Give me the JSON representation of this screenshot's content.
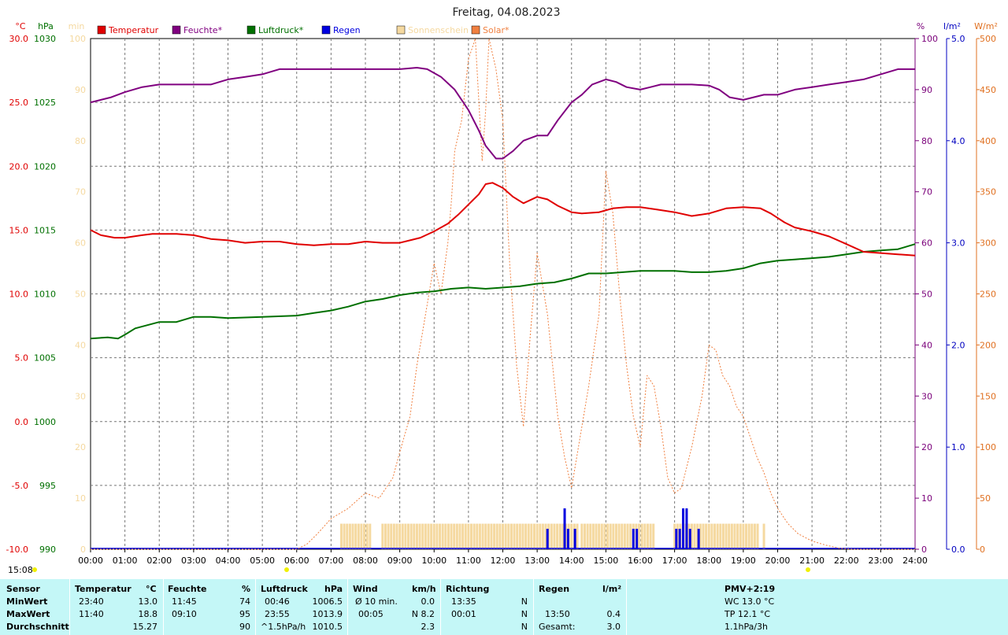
{
  "chart_data": {
    "type": "line",
    "title": "Freitag, 04.08.2023",
    "x_ticks": [
      "00:00",
      "01:00",
      "02:00",
      "03:00",
      "04:00",
      "05:00",
      "06:00",
      "07:00",
      "08:00",
      "09:00",
      "10:00",
      "11:00",
      "12:00",
      "13:00",
      "14:00",
      "15:00",
      "16:00",
      "17:00",
      "18:00",
      "19:00",
      "20:00",
      "21:00",
      "22:00",
      "23:00",
      "24:00"
    ],
    "xlim": [
      0,
      24
    ],
    "start_time_label": "15:08",
    "axes": {
      "temperature": {
        "unit": "°C",
        "ticks": [
          "30.0",
          "25.0",
          "20.0",
          "15.0",
          "10.0",
          "5.0",
          "0.0",
          "-5.0",
          "-10.0"
        ],
        "range": [
          -10,
          30
        ],
        "color": "#e00000"
      },
      "pressure": {
        "unit": "hPa",
        "ticks": [
          "1030",
          "1025",
          "1020",
          "1015",
          "1010",
          "1005",
          "1000",
          "995",
          "990"
        ],
        "range": [
          990,
          1030
        ],
        "color": "#007000"
      },
      "sunshine": {
        "unit": "min",
        "ticks": [
          "100",
          "90",
          "80",
          "70",
          "60",
          "50",
          "40",
          "30",
          "20",
          "10",
          "0"
        ],
        "range": [
          0,
          100
        ],
        "color": "#f5d9a0"
      },
      "humidity": {
        "unit": "%",
        "ticks": [
          "100",
          "90",
          "80",
          "70",
          "60",
          "50",
          "40",
          "30",
          "20",
          "10",
          "0"
        ],
        "range": [
          0,
          100
        ],
        "color": "#7a007a"
      },
      "rain": {
        "unit": "l/m²",
        "ticks": [
          "5.0",
          "4.0",
          "3.0",
          "2.0",
          "1.0",
          "0.0"
        ],
        "range": [
          0,
          5
        ],
        "color": "#0000c0"
      },
      "solar": {
        "unit": "W/m²",
        "ticks": [
          "500",
          "450",
          "400",
          "350",
          "300",
          "250",
          "200",
          "150",
          "100",
          "50",
          "0"
        ],
        "range": [
          0,
          500
        ],
        "color": "#e07020"
      }
    },
    "legend": [
      {
        "name": "Temperatur",
        "color": "#e00000"
      },
      {
        "name": "Feuchte*",
        "color": "#800080"
      },
      {
        "name": "Luftdruck*",
        "color": "#007000"
      },
      {
        "name": "Regen",
        "color": "#0000e0"
      },
      {
        "name": "Sonnenschein",
        "color": "#f5d9a0"
      },
      {
        "name": "Solar*",
        "color": "#f08040"
      }
    ],
    "series": {
      "temperature": {
        "x": [
          0,
          0.3,
          0.7,
          1.0,
          1.5,
          1.8,
          2.5,
          3.0,
          3.5,
          4.0,
          4.5,
          5.0,
          5.5,
          6.0,
          6.5,
          7.0,
          7.5,
          8.0,
          8.5,
          9.0,
          9.3,
          9.6,
          10.0,
          10.4,
          10.7,
          11.0,
          11.3,
          11.5,
          11.7,
          12.0,
          12.3,
          12.6,
          13.0,
          13.3,
          13.6,
          14.0,
          14.3,
          14.8,
          15.2,
          15.6,
          16.0,
          16.5,
          17.0,
          17.5,
          18.0,
          18.5,
          19.0,
          19.5,
          19.8,
          20.2,
          20.5,
          21.0,
          21.5,
          22.0,
          22.5,
          23.0,
          23.5,
          24.0
        ],
        "y": [
          15.0,
          14.6,
          14.4,
          14.4,
          14.6,
          14.7,
          14.7,
          14.6,
          14.3,
          14.2,
          14.0,
          14.1,
          14.1,
          13.9,
          13.8,
          13.9,
          13.9,
          14.1,
          14.0,
          14.0,
          14.2,
          14.4,
          14.9,
          15.5,
          16.2,
          17.0,
          17.8,
          18.6,
          18.7,
          18.3,
          17.6,
          17.1,
          17.6,
          17.4,
          16.9,
          16.4,
          16.3,
          16.4,
          16.7,
          16.8,
          16.8,
          16.6,
          16.4,
          16.1,
          16.3,
          16.7,
          16.8,
          16.7,
          16.3,
          15.6,
          15.2,
          14.9,
          14.5,
          13.9,
          13.3,
          13.2,
          13.1,
          13.0
        ]
      },
      "humidity": {
        "x": [
          0,
          0.3,
          0.6,
          1.0,
          1.5,
          2.0,
          3.0,
          3.5,
          4.0,
          4.5,
          5.0,
          5.5,
          6.0,
          7.0,
          8.0,
          9.0,
          9.5,
          9.8,
          10.2,
          10.6,
          11.0,
          11.3,
          11.5,
          11.8,
          12.0,
          12.3,
          12.6,
          13.0,
          13.3,
          13.6,
          14.0,
          14.3,
          14.6,
          15.0,
          15.3,
          15.6,
          16.0,
          16.3,
          16.6,
          17.0,
          17.5,
          18.0,
          18.3,
          18.6,
          19.0,
          19.3,
          19.6,
          20.0,
          20.5,
          21.0,
          21.5,
          22.0,
          22.5,
          23.0,
          23.5,
          24.0
        ],
        "y": [
          87.5,
          88.0,
          88.5,
          89.5,
          90.5,
          91.0,
          91.0,
          91.0,
          92.0,
          92.5,
          93.0,
          94.0,
          94.0,
          94.0,
          94.0,
          94.0,
          94.3,
          94.0,
          92.5,
          90.0,
          86.0,
          82.0,
          79.0,
          76.5,
          76.5,
          78.0,
          80.0,
          81.0,
          81.0,
          84.0,
          87.5,
          89.0,
          91.0,
          92.0,
          91.5,
          90.5,
          90.0,
          90.5,
          91.0,
          91.0,
          91.0,
          90.8,
          90.0,
          88.5,
          88.0,
          88.5,
          89.0,
          89.0,
          90.0,
          90.5,
          91.0,
          91.5,
          92.0,
          93.0,
          94.0,
          94.0
        ]
      },
      "pressure": {
        "x": [
          0,
          0.5,
          0.8,
          1.0,
          1.3,
          2.0,
          2.5,
          3.0,
          3.5,
          4.0,
          5.0,
          6.0,
          6.5,
          7.0,
          7.5,
          8.0,
          8.5,
          9.0,
          9.5,
          10.0,
          10.5,
          11.0,
          11.5,
          12.0,
          12.5,
          13.0,
          13.5,
          14.0,
          14.5,
          15.0,
          15.5,
          16.0,
          16.5,
          17.0,
          17.5,
          18.0,
          18.5,
          19.0,
          19.5,
          20.0,
          20.5,
          21.0,
          21.5,
          22.0,
          22.5,
          23.0,
          23.5,
          24.0
        ],
        "y": [
          1006.5,
          1006.6,
          1006.5,
          1006.8,
          1007.3,
          1007.8,
          1007.8,
          1008.2,
          1008.2,
          1008.1,
          1008.2,
          1008.3,
          1008.5,
          1008.7,
          1009.0,
          1009.4,
          1009.6,
          1009.9,
          1010.1,
          1010.2,
          1010.4,
          1010.5,
          1010.4,
          1010.5,
          1010.6,
          1010.8,
          1010.9,
          1011.2,
          1011.6,
          1011.6,
          1011.7,
          1011.8,
          1011.8,
          1011.8,
          1011.7,
          1011.7,
          1011.8,
          1012.0,
          1012.4,
          1012.6,
          1012.7,
          1012.8,
          1012.9,
          1013.1,
          1013.3,
          1013.4,
          1013.5,
          1013.9
        ]
      },
      "solar": {
        "x": [
          0,
          6.0,
          6.3,
          6.6,
          7.0,
          7.5,
          8.0,
          8.4,
          8.8,
          9.0,
          9.3,
          9.5,
          9.7,
          10.0,
          10.2,
          10.4,
          10.5,
          10.6,
          10.8,
          11.0,
          11.2,
          11.4,
          11.5,
          11.6,
          11.8,
          12.0,
          12.2,
          12.4,
          12.6,
          12.8,
          13.0,
          13.3,
          13.6,
          13.8,
          14.0,
          14.2,
          14.5,
          14.8,
          15.0,
          15.2,
          15.4,
          15.6,
          15.8,
          16.0,
          16.2,
          16.4,
          16.6,
          16.8,
          17.0,
          17.2,
          17.5,
          17.8,
          18.0,
          18.2,
          18.4,
          18.6,
          18.8,
          19.0,
          19.2,
          19.4,
          19.6,
          19.8,
          20.0,
          20.3,
          20.6,
          21.0,
          21.4,
          21.8,
          22.2,
          24.0
        ],
        "y": [
          0,
          0,
          5,
          15,
          30,
          40,
          55,
          50,
          70,
          95,
          130,
          180,
          220,
          280,
          250,
          300,
          340,
          390,
          420,
          480,
          500,
          380,
          430,
          500,
          470,
          420,
          280,
          180,
          120,
          210,
          290,
          230,
          130,
          90,
          60,
          100,
          160,
          230,
          370,
          330,
          250,
          180,
          130,
          100,
          170,
          160,
          120,
          70,
          55,
          60,
          100,
          150,
          200,
          195,
          170,
          160,
          140,
          130,
          110,
          90,
          75,
          55,
          40,
          25,
          15,
          8,
          4,
          1,
          0,
          0
        ]
      },
      "sunshine": {
        "intervals": [
          [
            7.3,
            8.15
          ],
          [
            8.5,
            14.2
          ],
          [
            14.3,
            16.4
          ],
          [
            17.0,
            19.45
          ],
          [
            19.6,
            19.65
          ]
        ],
        "value": 5
      },
      "rain": {
        "bars": [
          {
            "x": 13.3,
            "value": 0.2
          },
          {
            "x": 13.8,
            "value": 0.4
          },
          {
            "x": 13.9,
            "value": 0.2
          },
          {
            "x": 14.1,
            "value": 0.2
          },
          {
            "x": 15.8,
            "value": 0.2
          },
          {
            "x": 15.9,
            "value": 0.2
          },
          {
            "x": 17.05,
            "value": 0.2
          },
          {
            "x": 17.15,
            "value": 0.2
          },
          {
            "x": 17.25,
            "value": 0.4
          },
          {
            "x": 17.35,
            "value": 0.4
          },
          {
            "x": 17.45,
            "value": 0.2
          },
          {
            "x": 17.7,
            "value": 0.2
          }
        ]
      }
    }
  },
  "table": {
    "headers": {
      "sensor": "Sensor",
      "temp": "Temperatur",
      "temp_unit": "°C",
      "hum": "Feuchte",
      "hum_unit": "%",
      "press": "Luftdruck",
      "press_unit": "hPa",
      "wind": "Wind",
      "wind_unit": "km/h",
      "dir": "Richtung",
      "rain": "Regen",
      "rain_unit": "l/m²",
      "pmv": "PMV+2:19"
    },
    "rows": [
      {
        "label": "MinWert",
        "temp_time": "23:40",
        "temp_val": "13.0",
        "hum_time": "11:45",
        "hum_val": "74",
        "press_time": "00:46",
        "press_val": "1006.5",
        "wind_label": "Ø 10 min.",
        "wind_val": "0.0",
        "dir_time": "13:35",
        "dir_val": "N",
        "rain_time": "",
        "rain_val": "",
        "pmv": "WC 13.0 °C"
      },
      {
        "label": "MaxWert",
        "temp_time": "11:40",
        "temp_val": "18.8",
        "hum_time": "09:10",
        "hum_val": "95",
        "press_time": "23:55",
        "press_val": "1013.9",
        "wind_label": "00:05",
        "wind_val": "N 8.2",
        "dir_time": "00:01",
        "dir_val": "N",
        "rain_time": "13:50",
        "rain_val": "0.4",
        "pmv": "TP 12.1 °C"
      },
      {
        "label": "Durchschnitt",
        "temp_time": "",
        "temp_val": "15.27",
        "hum_time": "",
        "hum_val": "90",
        "press_time": "^1.5hPa/h",
        "press_val": "1010.5",
        "wind_label": "",
        "wind_val": "2.3",
        "dir_time": "",
        "dir_val": "N",
        "rain_time": "Gesamt:",
        "rain_val": "3.0",
        "pmv": "1.1hPa/3h"
      }
    ]
  }
}
